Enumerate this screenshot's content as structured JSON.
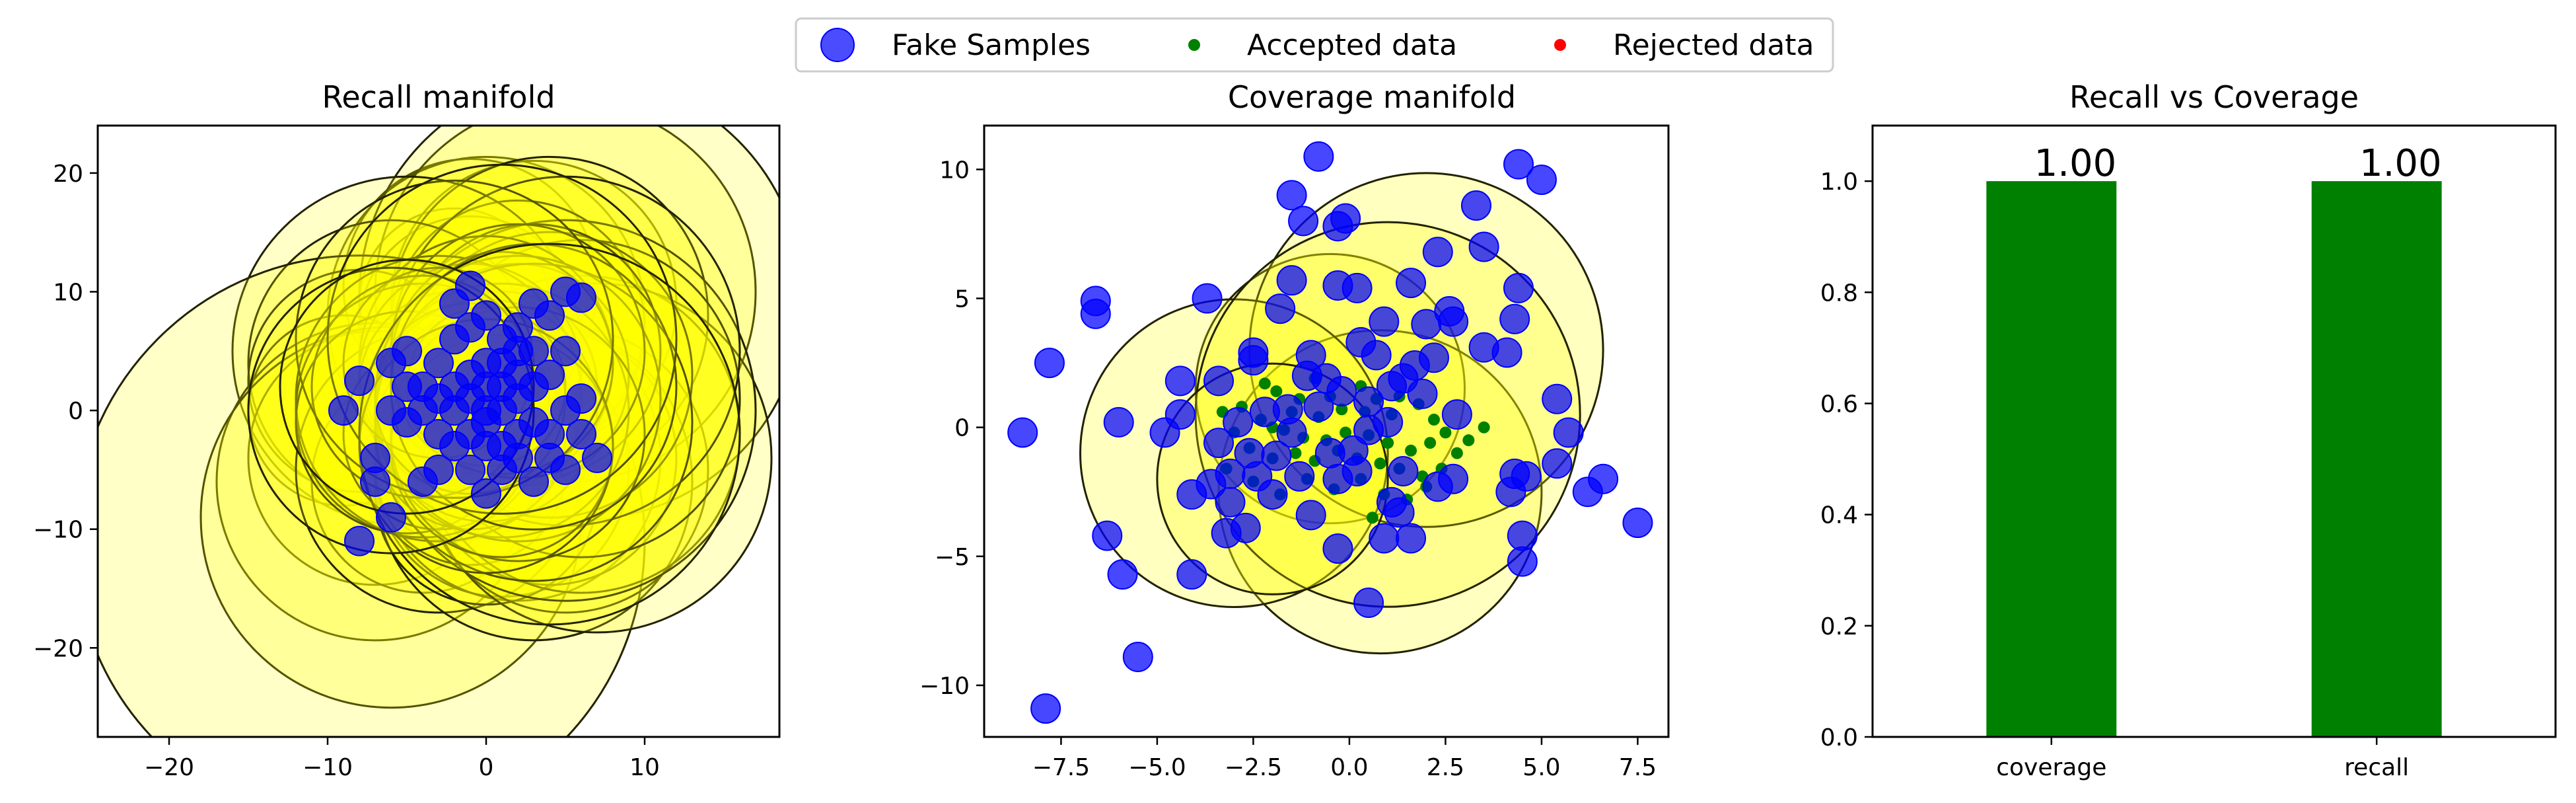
{
  "legend": {
    "entries": [
      {
        "label": "Fake Samples",
        "color": "#0000ff",
        "marker": "large-circle"
      },
      {
        "label": "Accepted data",
        "color": "#008000",
        "marker": "small-circle"
      },
      {
        "label": "Rejected data",
        "color": "#ff0000",
        "marker": "small-circle"
      }
    ]
  },
  "chart_data": [
    {
      "type": "scatter",
      "title": "Recall manifold",
      "xlim": [
        -24.5,
        18.5
      ],
      "ylim": [
        -27.5,
        24
      ],
      "xticks": [
        -20,
        -10,
        0,
        10
      ],
      "yticks": [
        -20,
        -10,
        0,
        10,
        20
      ],
      "fake_samples": {
        "color": "#0000ff",
        "points": [
          [
            -1,
            10.5
          ],
          [
            -2,
            9
          ],
          [
            0,
            8
          ],
          [
            -1,
            7
          ],
          [
            3,
            9
          ],
          [
            5,
            10
          ],
          [
            6,
            9.5
          ],
          [
            4,
            8
          ],
          [
            2,
            7
          ],
          [
            -5,
            5
          ],
          [
            -6,
            4
          ],
          [
            -8,
            2.5
          ],
          [
            -9,
            0
          ],
          [
            -7,
            -4
          ],
          [
            -7,
            -6
          ],
          [
            -4,
            -6
          ],
          [
            -6,
            -9
          ],
          [
            -8,
            -11
          ],
          [
            -3,
            -5
          ],
          [
            -2,
            -3
          ],
          [
            0,
            -1
          ],
          [
            1,
            -5
          ],
          [
            2,
            -4
          ],
          [
            3,
            -6
          ],
          [
            0,
            -7
          ],
          [
            -1,
            -5
          ],
          [
            4,
            -4
          ],
          [
            5,
            -5
          ],
          [
            6,
            -2
          ],
          [
            7,
            -4
          ],
          [
            5,
            0
          ],
          [
            6,
            1
          ],
          [
            4,
            3
          ],
          [
            5,
            5
          ],
          [
            3,
            5
          ],
          [
            2,
            3
          ],
          [
            1,
            2
          ],
          [
            0,
            4
          ],
          [
            -1,
            3
          ],
          [
            -2,
            2
          ],
          [
            -3,
            1
          ],
          [
            -4,
            0
          ],
          [
            -5,
            -1
          ],
          [
            -3,
            -2
          ],
          [
            -2,
            0
          ],
          [
            -1,
            -2
          ],
          [
            0,
            0
          ],
          [
            1,
            0
          ],
          [
            2,
            1
          ],
          [
            3,
            -1
          ],
          [
            2,
            -2
          ],
          [
            1,
            -3
          ],
          [
            -1,
            1
          ],
          [
            0,
            2
          ],
          [
            1,
            4
          ],
          [
            2,
            5
          ],
          [
            -3,
            4
          ],
          [
            -4,
            2
          ],
          [
            0,
            -3
          ],
          [
            3,
            2
          ],
          [
            -2,
            6
          ],
          [
            1,
            6
          ],
          [
            4,
            -2
          ],
          [
            -6,
            0
          ],
          [
            -5,
            2
          ]
        ],
        "radii": [
          8,
          6,
          10,
          7,
          9,
          12,
          14,
          10,
          8,
          11,
          9,
          7,
          6,
          8,
          10,
          7,
          12,
          18,
          9,
          6,
          7,
          8,
          9,
          10,
          7,
          6,
          8,
          9,
          10,
          11,
          12,
          10,
          9,
          11,
          8,
          7,
          6,
          8,
          7,
          6,
          9,
          8,
          7,
          6,
          5,
          6,
          7,
          8,
          9,
          10,
          8,
          7,
          6,
          5,
          7,
          8,
          6,
          7,
          8,
          9,
          10,
          11,
          12,
          9,
          8
        ]
      },
      "accepted_data": [],
      "rejected_data": []
    },
    {
      "type": "scatter",
      "title": "Coverage manifold",
      "xlim": [
        -9.5,
        8.3
      ],
      "ylim": [
        -12,
        11.7
      ],
      "xticks": [
        -7.5,
        -5.0,
        -2.5,
        0.0,
        2.5,
        5.0,
        7.5
      ],
      "yticks": [
        -10,
        -5,
        0,
        5,
        10
      ],
      "fake_samples": {
        "color": "#0000ff",
        "points": [
          [
            -0.8,
            10.5
          ],
          [
            -1.5,
            9
          ],
          [
            -1.2,
            8
          ],
          [
            -0.3,
            7.8
          ],
          [
            -0.1,
            8.1
          ],
          [
            4.4,
            10.2
          ],
          [
            5,
            9.6
          ],
          [
            3.3,
            8.6
          ],
          [
            3.5,
            7
          ],
          [
            2.3,
            6.8
          ],
          [
            1.6,
            5.6
          ],
          [
            -0.3,
            5.5
          ],
          [
            0.2,
            5.4
          ],
          [
            -1.5,
            5.7
          ],
          [
            -1.8,
            4.6
          ],
          [
            -3.7,
            5
          ],
          [
            -6.6,
            4.9
          ],
          [
            -6.6,
            4.4
          ],
          [
            -7.8,
            2.5
          ],
          [
            -8.5,
            -0.2
          ],
          [
            -6.0,
            0.2
          ],
          [
            -4.8,
            -0.2
          ],
          [
            -4.4,
            0.5
          ],
          [
            -3.4,
            1.8
          ],
          [
            -2.5,
            2.9
          ],
          [
            -1.0,
            2.8
          ],
          [
            0.3,
            3.3
          ],
          [
            0.9,
            4.1
          ],
          [
            2.0,
            4.0
          ],
          [
            2.6,
            4.5
          ],
          [
            2.7,
            4.1
          ],
          [
            4.4,
            5.4
          ],
          [
            4.3,
            4.2
          ],
          [
            3.5,
            3.1
          ],
          [
            4.1,
            2.9
          ],
          [
            5.4,
            1.1
          ],
          [
            5.7,
            -0.2
          ],
          [
            5.4,
            -1.4
          ],
          [
            4.6,
            -1.9
          ],
          [
            4.2,
            -2.5
          ],
          [
            4.3,
            -1.8
          ],
          [
            4.5,
            -4.2
          ],
          [
            4.5,
            -5.2
          ],
          [
            6.2,
            -2.5
          ],
          [
            6.6,
            -2.0
          ],
          [
            7.5,
            -3.7
          ],
          [
            -6.3,
            -4.2
          ],
          [
            -5.9,
            -5.7
          ],
          [
            -4.1,
            -5.7
          ],
          [
            -5.5,
            -8.9
          ],
          [
            -7.9,
            -10.9
          ],
          [
            -3.2,
            -4.1
          ],
          [
            -2.7,
            -3.9
          ],
          [
            -4.1,
            -2.6
          ],
          [
            -3.6,
            -2.2
          ],
          [
            -3.1,
            -2.9
          ],
          [
            -2.4,
            -1.9
          ],
          [
            -1.9,
            -1.1
          ],
          [
            -1.3,
            -1.9
          ],
          [
            -0.3,
            -2.0
          ],
          [
            0.2,
            -1.7
          ],
          [
            -0.5,
            -1.0
          ],
          [
            0.1,
            -0.9
          ],
          [
            0.5,
            -0.1
          ],
          [
            1.0,
            0.2
          ],
          [
            1.4,
            -1.7
          ],
          [
            1.1,
            -2.9
          ],
          [
            1.3,
            -3.3
          ],
          [
            0.9,
            -4.3
          ],
          [
            1.6,
            -4.3
          ],
          [
            -0.3,
            -4.7
          ],
          [
            -1.0,
            -3.4
          ],
          [
            0.5,
            -6.8
          ],
          [
            2.3,
            -2.3
          ],
          [
            2.7,
            -2.0
          ],
          [
            2.8,
            0.5
          ],
          [
            1.9,
            1.3
          ],
          [
            1.4,
            1.9
          ],
          [
            0.5,
            1.0
          ],
          [
            -0.2,
            1.4
          ],
          [
            -0.8,
            0.8
          ],
          [
            -1.6,
            0.7
          ],
          [
            -2.2,
            0.6
          ],
          [
            -2.9,
            0.2
          ],
          [
            -3.4,
            -0.6
          ],
          [
            -2.6,
            -1.0
          ],
          [
            -2.0,
            -2.6
          ],
          [
            -1.5,
            -0.2
          ],
          [
            -0.6,
            1.9
          ],
          [
            0.7,
            2.8
          ],
          [
            1.1,
            1.6
          ],
          [
            1.7,
            2.4
          ],
          [
            2.2,
            2.7
          ],
          [
            -1.1,
            2.0
          ],
          [
            -2.5,
            2.6
          ],
          [
            -4.4,
            1.8
          ],
          [
            -3.1,
            -1.8
          ]
        ],
        "radii": []
      },
      "neighborhoods": {
        "centers": [
          [
            -0.5,
            1.5
          ],
          [
            0.8,
            -2.5
          ],
          [
            2,
            3
          ],
          [
            -3,
            -1
          ],
          [
            1,
            0.5
          ],
          [
            -2,
            -2
          ]
        ],
        "radii": [
          3.5,
          4.2,
          4.6,
          4.0,
          5.0,
          3.0
        ]
      },
      "accepted_data": {
        "color": "#008000",
        "points": [
          [
            -2.2,
            1.7
          ],
          [
            -1.9,
            1.4
          ],
          [
            -1.3,
            1.1
          ],
          [
            -0.9,
            1.9
          ],
          [
            -0.5,
            1.2
          ],
          [
            0.3,
            1.6
          ],
          [
            0.7,
            1.1
          ],
          [
            1.3,
            1.2
          ],
          [
            1.8,
            0.9
          ],
          [
            2.2,
            0.3
          ],
          [
            2.5,
            -0.2
          ],
          [
            2.1,
            -0.6
          ],
          [
            1.6,
            -0.9
          ],
          [
            1.0,
            -0.6
          ],
          [
            0.5,
            -0.3
          ],
          [
            -0.1,
            -0.2
          ],
          [
            -0.6,
            -0.5
          ],
          [
            -1.2,
            -0.4
          ],
          [
            -1.7,
            -0.1
          ],
          [
            -2.3,
            0.3
          ],
          [
            -2.8,
            0.8
          ],
          [
            -3.3,
            0.6
          ],
          [
            -3.0,
            -0.2
          ],
          [
            -2.6,
            -0.8
          ],
          [
            -2.0,
            -1.2
          ],
          [
            -1.4,
            -1.0
          ],
          [
            -0.9,
            -1.3
          ],
          [
            -0.3,
            -0.9
          ],
          [
            0.2,
            -1.2
          ],
          [
            0.8,
            -1.4
          ],
          [
            1.3,
            -1.6
          ],
          [
            1.9,
            -1.9
          ],
          [
            2.4,
            -1.6
          ],
          [
            2.8,
            -1.0
          ],
          [
            3.1,
            -0.5
          ],
          [
            3.5,
            0.0
          ],
          [
            1.1,
            0.5
          ],
          [
            0.4,
            0.6
          ],
          [
            -0.2,
            0.7
          ],
          [
            -0.8,
            0.4
          ],
          [
            -1.5,
            0.6
          ],
          [
            -2.0,
            0.0
          ],
          [
            -1.1,
            -2.0
          ],
          [
            -0.4,
            -2.4
          ],
          [
            0.3,
            -2.0
          ],
          [
            0.9,
            -2.6
          ],
          [
            1.5,
            -2.8
          ],
          [
            2.0,
            -2.3
          ],
          [
            -1.8,
            -2.6
          ],
          [
            -2.5,
            -2.1
          ],
          [
            -3.2,
            -1.6
          ],
          [
            0.6,
            -3.5
          ]
        ]
      },
      "rejected_data": []
    },
    {
      "type": "bar",
      "title": "Recall vs Coverage",
      "categories": [
        "coverage",
        "recall"
      ],
      "values": [
        1.0,
        1.0
      ],
      "data_labels": [
        "1.00",
        "1.00"
      ],
      "color": "#008000",
      "ylim": [
        0,
        1.1
      ],
      "yticks": [
        "0.0",
        "0.2",
        "0.4",
        "0.6",
        "0.8",
        "1.0"
      ]
    }
  ]
}
